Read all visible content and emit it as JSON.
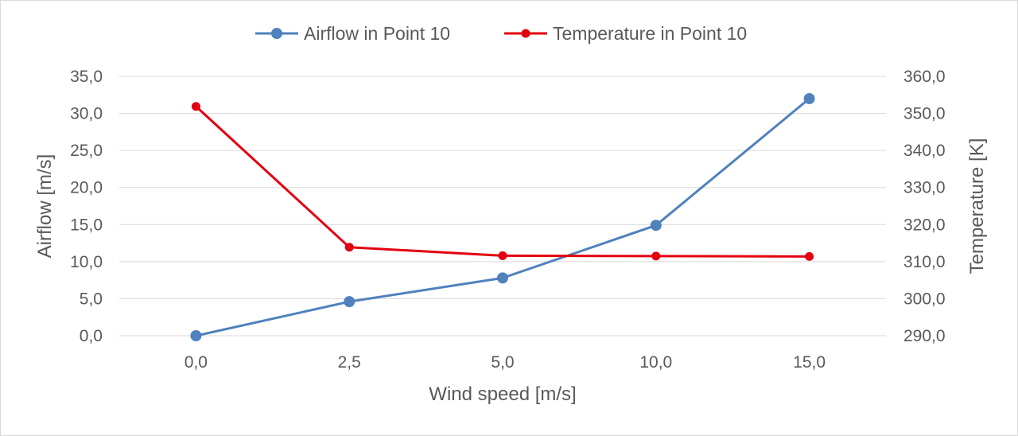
{
  "chart_data": {
    "type": "line",
    "title": "",
    "categories": [
      "0,0",
      "2,5",
      "5,0",
      "10,0",
      "15,0"
    ],
    "xlabel": "Wind speed [m/s]",
    "ylabel": "Airflow [m/s]",
    "y2label": "Temperature [K]",
    "ylim": [
      0,
      35
    ],
    "y2lim": [
      290,
      360
    ],
    "yticks": [
      "0,0",
      "5,0",
      "10,0",
      "15,0",
      "20,0",
      "25,0",
      "30,0",
      "35,0"
    ],
    "y2ticks": [
      "290,0",
      "300,0",
      "310,0",
      "320,0",
      "330,0",
      "340,0",
      "350,0",
      "360,0"
    ],
    "grid": true,
    "legend_position": "top",
    "series": [
      {
        "name": "Airflow in Point 10",
        "axis": "left",
        "color": "#4f81bd",
        "values": [
          0.0,
          4.6,
          7.8,
          14.9,
          32.0
        ]
      },
      {
        "name": "Temperature in Point 10",
        "axis": "right",
        "color": "#e3000f",
        "values": [
          351.9,
          313.9,
          311.6,
          311.5,
          311.4
        ]
      }
    ]
  }
}
